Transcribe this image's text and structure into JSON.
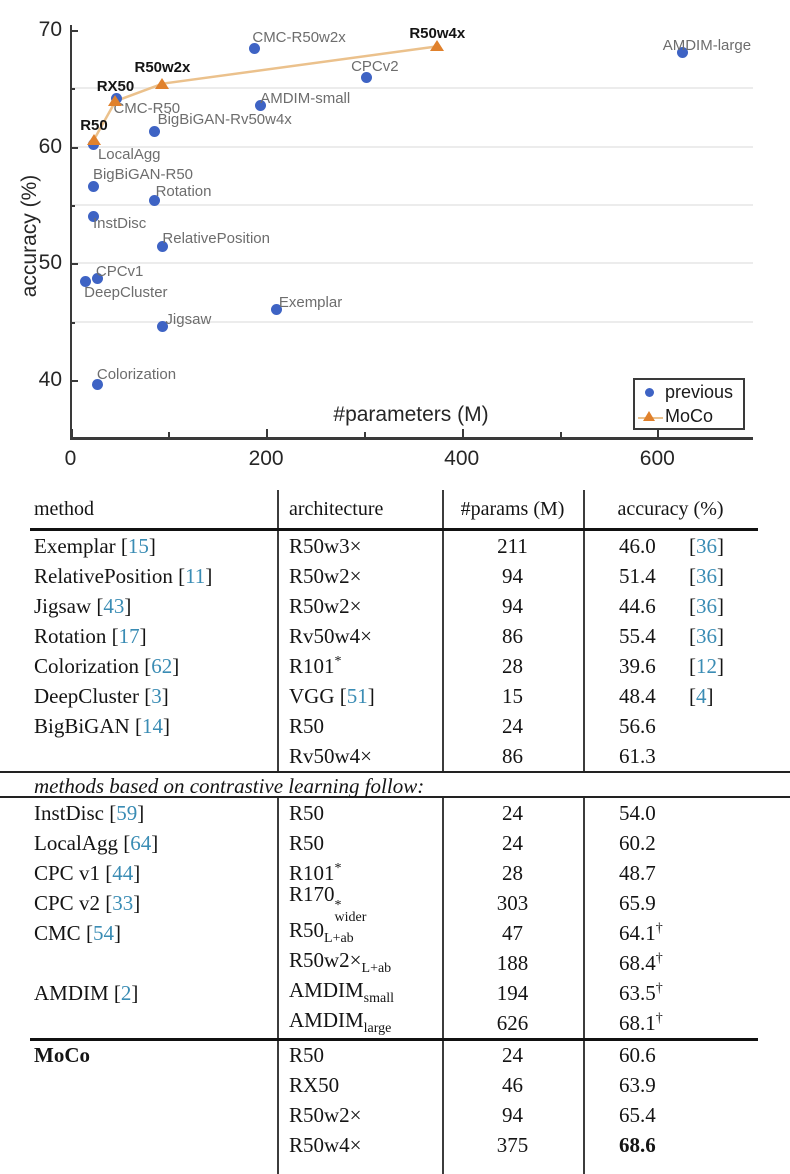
{
  "chart_data": {
    "type": "scatter",
    "xlabel": "#parameters (M)",
    "ylabel": "accuracy (%)",
    "xlim": [
      0,
      698
    ],
    "ylim": [
      35.1,
      70
    ],
    "xticks_major": [
      0,
      200,
      400,
      600
    ],
    "xticks_minor": [
      100,
      300,
      500,
      700
    ],
    "yticks_major": [
      40,
      50,
      60,
      70
    ],
    "yticks_minor": [
      45,
      55,
      65
    ],
    "grid": {
      "horizontal_at": [
        45,
        50,
        55,
        60,
        65
      ]
    },
    "legend": {
      "position": "bottom-right",
      "entries": [
        {
          "label": "previous",
          "marker": "circle",
          "color": "#3e63c4"
        },
        {
          "label": "MoCo",
          "marker": "triangle",
          "color": "#e0812c",
          "line_color": "#ebc18c"
        }
      ]
    },
    "series": [
      {
        "name": "previous",
        "marker": "circle",
        "color": "#3e63c4",
        "label_color": "#6d6d6d",
        "points": [
          {
            "label": "CMC-R50w2x",
            "x": 188,
            "y": 68.4,
            "anchor": "left",
            "dx": -2,
            "dy": -20
          },
          {
            "label": "CPCv2",
            "x": 303,
            "y": 65.9,
            "anchor": "center",
            "dx": 8,
            "dy": -20
          },
          {
            "label": "AMDIM-small",
            "x": 194,
            "y": 63.5,
            "anchor": "left",
            "dx": 0,
            "dy": -16
          },
          {
            "label": "AMDIM-large",
            "x": 626,
            "y": 68.1,
            "anchor": "left",
            "dx": -20,
            "dy": -15
          },
          {
            "label": "CMC-R50",
            "x": 47,
            "y": 64.1,
            "anchor": "left",
            "dx": -3,
            "dy": 1
          },
          {
            "label": "BigBiGAN-Rv50w4x",
            "x": 86,
            "y": 61.3,
            "anchor": "left",
            "dx": 3,
            "dy": -20
          },
          {
            "label": "LocalAgg",
            "x": 24,
            "y": 60.2,
            "anchor": "left",
            "dx": 4,
            "dy": 2
          },
          {
            "label": "BigBiGAN-R50",
            "x": 24,
            "y": 56.6,
            "anchor": "left",
            "dx": -1,
            "dy": -20
          },
          {
            "label": "Rotation",
            "x": 86,
            "y": 55.4,
            "anchor": "left",
            "dx": 1,
            "dy": -17
          },
          {
            "label": "InstDisc",
            "x": 24,
            "y": 54.0,
            "anchor": "left",
            "dx": -1,
            "dy": -2
          },
          {
            "label": "RelativePosition",
            "x": 94,
            "y": 51.4,
            "anchor": "left",
            "dx": 0,
            "dy": -17
          },
          {
            "label": "CPCv1",
            "x": 28,
            "y": 48.7,
            "anchor": "left",
            "dx": -2,
            "dy": -15
          },
          {
            "label": "DeepCluster",
            "x": 15,
            "y": 48.4,
            "anchor": "left",
            "dx": -1,
            "dy": 2
          },
          {
            "label": "Exemplar",
            "x": 211,
            "y": 46.0,
            "anchor": "left",
            "dx": 2,
            "dy": -16
          },
          {
            "label": "Jigsaw",
            "x": 94,
            "y": 44.6,
            "anchor": "left",
            "dx": 3,
            "dy": -15
          },
          {
            "label": "Colorization",
            "x": 28,
            "y": 39.6,
            "anchor": "left",
            "dx": -1,
            "dy": -19
          }
        ]
      },
      {
        "name": "MoCo",
        "marker": "triangle",
        "color": "#e0812c",
        "line": true,
        "line_color": "#ebc18c",
        "label_color": "#141414",
        "label_bold": true,
        "points": [
          {
            "label": "R50",
            "x": 24,
            "y": 60.6,
            "anchor": "center",
            "dx": 0,
            "dy": -23
          },
          {
            "label": "RX50",
            "x": 46,
            "y": 63.9,
            "anchor": "center",
            "dx": 0,
            "dy": -23
          },
          {
            "label": "R50w2x",
            "x": 94,
            "y": 65.4,
            "anchor": "center",
            "dx": 0,
            "dy": -25
          },
          {
            "label": "R50w4x",
            "x": 375,
            "y": 68.6,
            "anchor": "center",
            "dx": 0,
            "dy": -21
          }
        ]
      }
    ]
  },
  "table": {
    "headers": [
      "method",
      "architecture",
      "#params (M)",
      "accuracy (%)"
    ],
    "sections": [
      {
        "rows": [
          {
            "method": "Exemplar",
            "mcite": "15",
            "arch": "R50w3×",
            "params": "211",
            "acc": "46.0",
            "acite": "36"
          },
          {
            "method": "RelativePosition",
            "mcite": "11",
            "arch": "R50w2×",
            "params": "94",
            "acc": "51.4",
            "acite": "36"
          },
          {
            "method": "Jigsaw",
            "mcite": "43",
            "arch": "R50w2×",
            "params": "94",
            "acc": "44.6",
            "acite": "36"
          },
          {
            "method": "Rotation",
            "mcite": "17",
            "arch": "Rv50w4×",
            "params": "86",
            "acc": "55.4",
            "acite": "36"
          },
          {
            "method": "Colorization",
            "mcite": "62",
            "arch": "R101",
            "arch_sup": "*",
            "params": "28",
            "acc": "39.6",
            "acite": "12"
          },
          {
            "method": "DeepCluster",
            "mcite": "3",
            "arch": "VGG",
            "arch_cite": "51",
            "params": "15",
            "acc": "48.4",
            "acite": "4"
          },
          {
            "method": "BigBiGAN",
            "mcite": "14",
            "arch": "R50",
            "params": "24",
            "acc": "56.6"
          },
          {
            "method": "",
            "arch": "Rv50w4×",
            "params": "86",
            "acc": "61.3"
          }
        ]
      },
      {
        "divider": "methods based on contrastive learning follow:",
        "rows": [
          {
            "method": "InstDisc",
            "mcite": "59",
            "arch": "R50",
            "params": "24",
            "acc": "54.0"
          },
          {
            "method": "LocalAgg",
            "mcite": "64",
            "arch": "R50",
            "params": "24",
            "acc": "60.2"
          },
          {
            "method": "CPC v1",
            "mcite": "44",
            "arch": "R101",
            "arch_sup": "*",
            "params": "28",
            "acc": "48.7"
          },
          {
            "method": "CPC v2",
            "mcite": "33",
            "arch": "R170",
            "arch_sup": "*",
            "arch_sub": "wider",
            "params": "303",
            "acc": "65.9"
          },
          {
            "method": "CMC",
            "mcite": "54",
            "arch": "R50",
            "arch_sub": "L+ab",
            "params": "47",
            "acc": "64.1",
            "acc_sup": "†"
          },
          {
            "method": "",
            "arch": "R50w2×",
            "arch_sub": "L+ab",
            "params": "188",
            "acc": "68.4",
            "acc_sup": "†"
          },
          {
            "method": "AMDIM",
            "mcite": "2",
            "arch": "AMDIM",
            "arch_sub": "small",
            "params": "194",
            "acc": "63.5",
            "acc_sup": "†"
          },
          {
            "method": "",
            "arch": "AMDIM",
            "arch_sub": "large",
            "params": "626",
            "acc": "68.1",
            "acc_sup": "†"
          }
        ]
      },
      {
        "rows": [
          {
            "method": "MoCo",
            "method_bold": true,
            "arch": "R50",
            "params": "24",
            "acc": "60.6"
          },
          {
            "method": "",
            "arch": "RX50",
            "params": "46",
            "acc": "63.9"
          },
          {
            "method": "",
            "arch": "R50w2×",
            "params": "94",
            "acc": "65.4"
          },
          {
            "method": "",
            "arch": "R50w4×",
            "params": "375",
            "acc": "68.6",
            "acc_bold": true
          }
        ]
      }
    ]
  }
}
